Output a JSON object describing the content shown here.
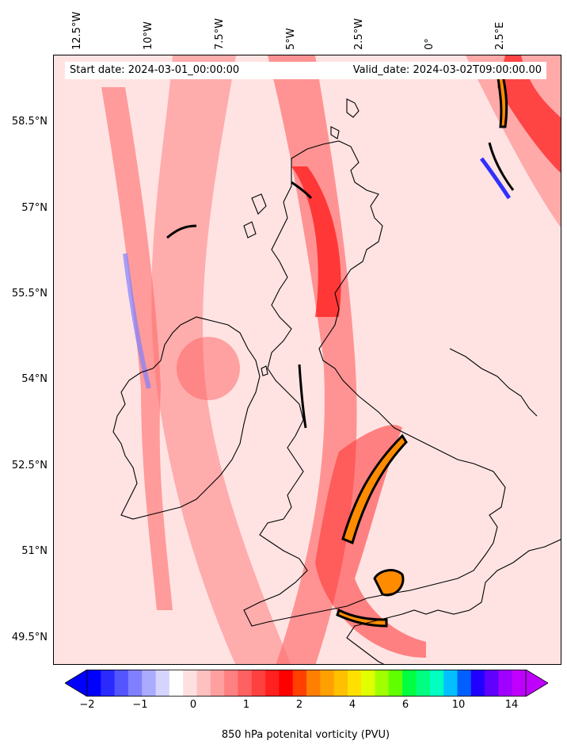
{
  "map": {
    "start_date": "Start date: 2024-03-01_00:00:00",
    "valid_date": "Valid_date: 2024-03-02T09:00:00.00",
    "lon_labels": [
      "12.5°W",
      "10°W",
      "7.5°W",
      "5°W",
      "2.5°W",
      "0°",
      "2.5°E"
    ],
    "lat_labels": [
      "58.5°N",
      "57°N",
      "55.5°N",
      "54°N",
      "52.5°N",
      "51°N",
      "49.5°N"
    ],
    "variable": "850 hPa potential vorticity (PVU)",
    "colors": {
      "ocean_field": "#ffe8e8",
      "coastline": "#000000",
      "high_pv_core": "#ff8c00"
    }
  },
  "colorbar": {
    "label": "850 hPa potenital vorticity (PVU)",
    "ticks": [
      "−2",
      "−1",
      "0",
      "1",
      "2",
      "4",
      "6",
      "10",
      "14"
    ],
    "colors": [
      "#0000ff",
      "#2a2aff",
      "#5555ff",
      "#8080ff",
      "#aaaaff",
      "#d4d4ff",
      "#ffffff",
      "#ffe0e0",
      "#ffc0c0",
      "#ffa0a0",
      "#ff8080",
      "#ff6060",
      "#ff4040",
      "#ff2020",
      "#ff0000",
      "#ff4000",
      "#ff8000",
      "#ffa000",
      "#ffc000",
      "#ffe000",
      "#e0ff00",
      "#a0ff00",
      "#60ff00",
      "#00ff40",
      "#00ff80",
      "#00ffc0",
      "#00c0ff",
      "#0060ff",
      "#2000ff",
      "#6000ff",
      "#a000ff",
      "#c000ff"
    ]
  }
}
